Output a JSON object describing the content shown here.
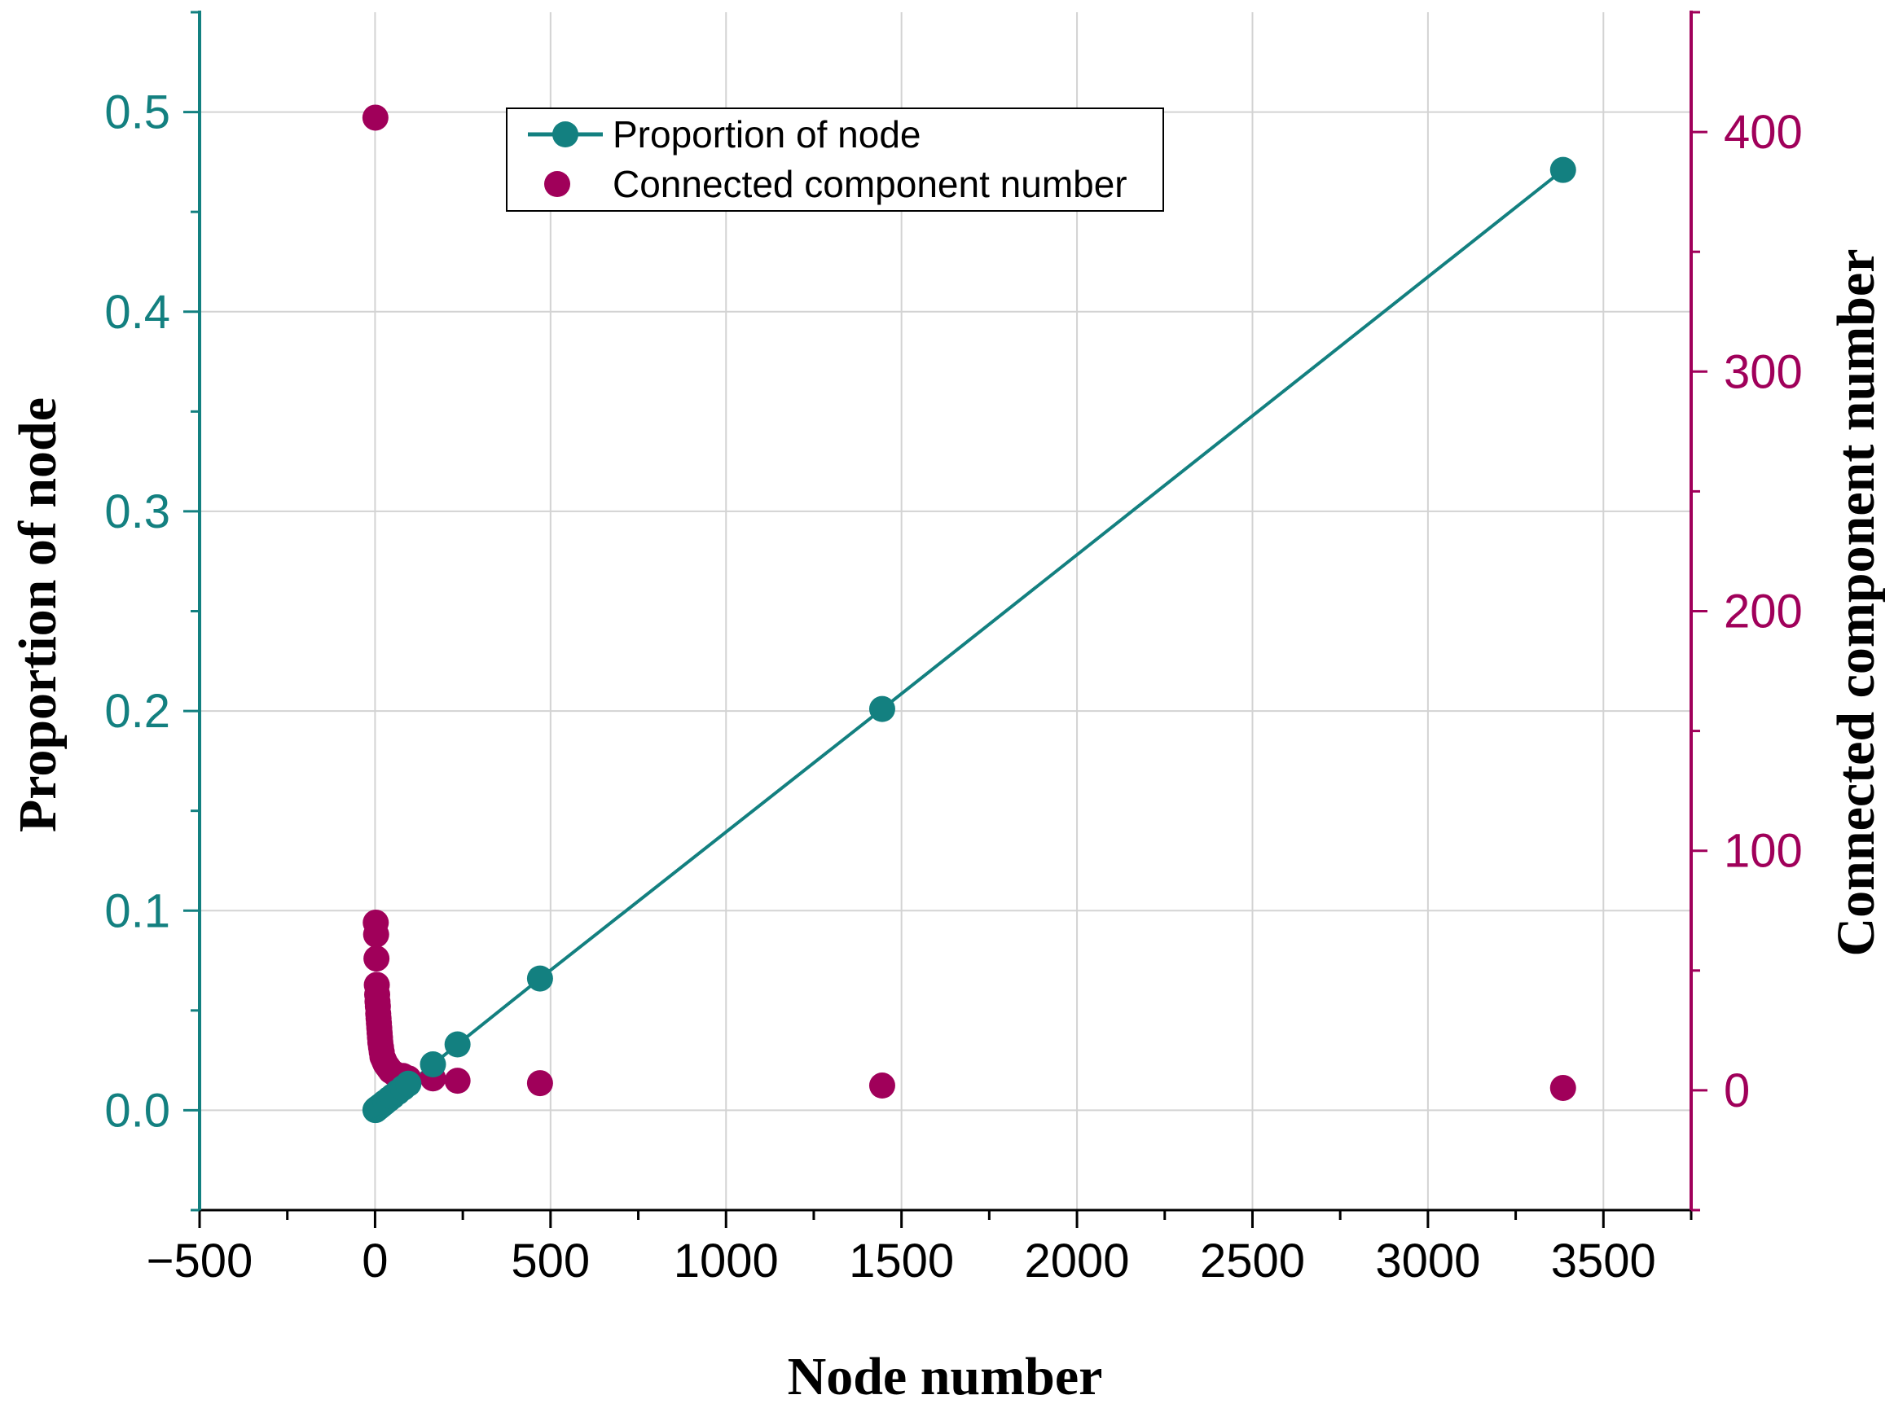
{
  "chart_data": {
    "type": "scatter",
    "title": "",
    "xlabel": "Node number",
    "ylabel_left": "Proportion of node",
    "ylabel_right": "Connected component number",
    "xlim": [
      -500,
      3750
    ],
    "ylim_left": [
      -0.05,
      0.55
    ],
    "ylim_right": [
      -50,
      450
    ],
    "x_ticks": [
      -500,
      0,
      500,
      1000,
      1500,
      2000,
      2500,
      3000,
      3500
    ],
    "x_tick_labels": [
      "−500",
      "0",
      "500",
      "1000",
      "1500",
      "2000",
      "2500",
      "3000",
      "3500"
    ],
    "y_left_ticks": [
      0.0,
      0.1,
      0.2,
      0.3,
      0.4,
      0.5
    ],
    "y_left_tick_labels": [
      "0.0",
      "0.1",
      "0.2",
      "0.3",
      "0.4",
      "0.5"
    ],
    "y_right_ticks": [
      0,
      100,
      200,
      300,
      400
    ],
    "y_right_tick_labels": [
      "0",
      "100",
      "200",
      "300",
      "400"
    ],
    "grid": true,
    "legend_position": "top-center",
    "series": [
      {
        "name": "Proportion of node",
        "axis": "left",
        "style": "line+markers",
        "color": "#138080",
        "x": [
          1,
          2,
          3,
          4,
          5,
          6,
          8,
          10,
          12,
          15,
          20,
          25,
          30,
          40,
          50,
          65,
          80,
          95,
          165,
          235,
          470,
          1445,
          3385
        ],
        "y": [
          0.0001,
          0.0003,
          0.0004,
          0.0006,
          0.0007,
          0.0009,
          0.0011,
          0.0014,
          0.0017,
          0.0021,
          0.0028,
          0.0035,
          0.0042,
          0.0056,
          0.007,
          0.0091,
          0.0112,
          0.0133,
          0.023,
          0.033,
          0.066,
          0.201,
          0.471
        ]
      },
      {
        "name": "Connected component number",
        "axis": "right",
        "style": "markers",
        "color": "#A0005A",
        "x": [
          1,
          2,
          3,
          4,
          5,
          6,
          7,
          8,
          9,
          10,
          11,
          12,
          13,
          14,
          15,
          17,
          19,
          21,
          24,
          27,
          30,
          35,
          40,
          45,
          55,
          65,
          80,
          95,
          165,
          235,
          470,
          1445,
          3385
        ],
        "y": [
          406,
          70,
          65,
          55,
          44,
          40,
          37,
          35,
          32,
          30,
          28,
          26,
          24,
          22,
          20,
          18,
          16,
          14,
          13,
          12,
          11,
          10,
          9,
          8,
          7,
          6,
          6,
          5,
          5,
          4,
          3,
          2,
          1
        ]
      }
    ]
  },
  "colors": {
    "left_axis": "#138080",
    "right_axis": "#A0005A",
    "grid": "#d3d3d3"
  }
}
